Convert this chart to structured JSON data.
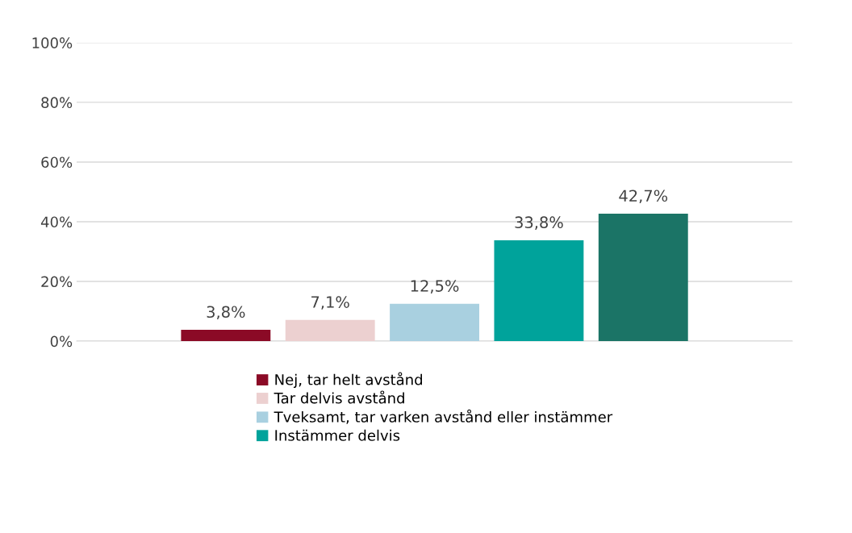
{
  "chart_data": {
    "type": "bar",
    "categories": [
      null
    ],
    "series": [
      {
        "name": "Nej, tar helt avstånd",
        "color": "#8b0a26",
        "values": [
          3.8
        ],
        "value_labels": [
          "3,8%"
        ]
      },
      {
        "name": "Tar delvis avstånd",
        "color": "#ecd0d0",
        "values": [
          7.1
        ],
        "value_labels": [
          "7,1%"
        ]
      },
      {
        "name": "Tveksamt, tar varken avstånd eller instämmer",
        "color": "#a9d0e0",
        "values": [
          12.5
        ],
        "value_labels": [
          "12,5%"
        ]
      },
      {
        "name": "Instämmer delvis",
        "color": "#00a39b",
        "values": [
          33.8
        ],
        "value_labels": [
          "33,8%"
        ]
      },
      {
        "color": "#1b7466",
        "values": [
          42.7
        ],
        "value_labels": [
          "42,7%"
        ]
      }
    ],
    "ylim": [
      0,
      100
    ],
    "yticks": [
      {
        "value": 0,
        "label": "0%"
      },
      {
        "value": 20,
        "label": "20%"
      },
      {
        "value": 40,
        "label": "40%"
      },
      {
        "value": 60,
        "label": "60%"
      },
      {
        "value": 80,
        "label": "80%"
      },
      {
        "value": 100,
        "label": "100%"
      }
    ],
    "grid": "y",
    "legend": "bottom"
  }
}
